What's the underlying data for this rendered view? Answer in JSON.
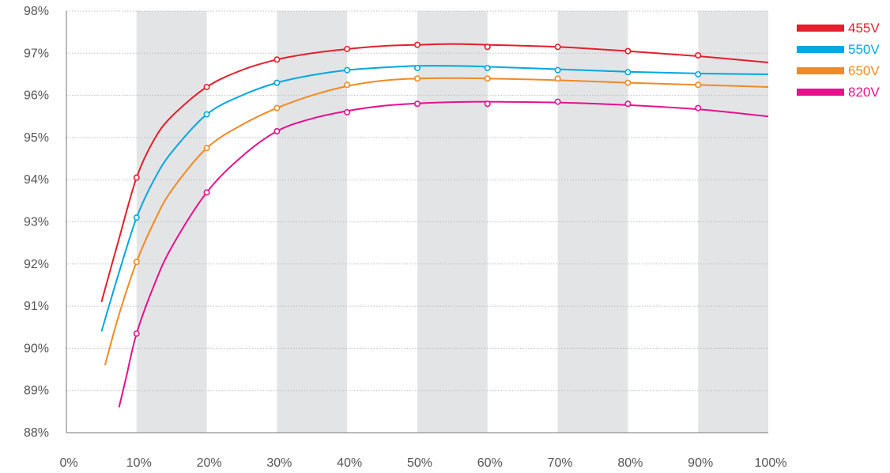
{
  "chart_data": {
    "type": "line",
    "title": "",
    "xlabel": "",
    "ylabel": "",
    "xlim": [
      0,
      100
    ],
    "ylim": [
      88,
      98
    ],
    "x_ticks": [
      0,
      10,
      20,
      30,
      40,
      50,
      60,
      70,
      80,
      90,
      100
    ],
    "x_tick_labels": [
      "0%",
      "10%",
      "20%",
      "30%",
      "40%",
      "50%",
      "60%",
      "70%",
      "80%",
      "90%",
      "100%"
    ],
    "y_ticks": [
      88,
      89,
      90,
      91,
      92,
      93,
      94,
      95,
      96,
      97,
      98
    ],
    "y_tick_labels": [
      "88%",
      "89%",
      "90%",
      "91%",
      "92%",
      "93%",
      "94%",
      "95%",
      "96%",
      "97%",
      "98%"
    ],
    "grid": "horizontal dotted",
    "shaded_bands": [
      [
        10,
        20
      ],
      [
        30,
        40
      ],
      [
        50,
        60
      ],
      [
        70,
        80
      ],
      [
        90,
        100
      ]
    ],
    "legend_position": "top-right",
    "markers_x": [
      10,
      20,
      30,
      40,
      50,
      60,
      70,
      80,
      90
    ],
    "series": [
      {
        "name": "455V",
        "color": "#e41e2b",
        "markers": [
          94.05,
          96.2,
          96.85,
          97.1,
          97.2,
          97.15,
          97.15,
          97.05,
          96.95
        ],
        "curve": [
          [
            5,
            91.1
          ],
          [
            7.5,
            92.6
          ],
          [
            10,
            94.05
          ],
          [
            12.5,
            94.95
          ],
          [
            15,
            95.5
          ],
          [
            20,
            96.2
          ],
          [
            25,
            96.6
          ],
          [
            30,
            96.85
          ],
          [
            35,
            97.0
          ],
          [
            40,
            97.1
          ],
          [
            45,
            97.17
          ],
          [
            50,
            97.2
          ],
          [
            55,
            97.22
          ],
          [
            60,
            97.2
          ],
          [
            70,
            97.15
          ],
          [
            80,
            97.05
          ],
          [
            90,
            96.93
          ],
          [
            100,
            96.78
          ]
        ]
      },
      {
        "name": "550V",
        "color": "#00a7e1",
        "markers": [
          93.1,
          95.55,
          96.3,
          96.6,
          96.65,
          96.65,
          96.6,
          96.55,
          96.5
        ],
        "curve": [
          [
            5,
            90.4
          ],
          [
            7.5,
            91.8
          ],
          [
            10,
            93.1
          ],
          [
            12.5,
            94.0
          ],
          [
            15,
            94.65
          ],
          [
            20,
            95.55
          ],
          [
            25,
            96.0
          ],
          [
            30,
            96.3
          ],
          [
            35,
            96.48
          ],
          [
            40,
            96.6
          ],
          [
            45,
            96.66
          ],
          [
            50,
            96.7
          ],
          [
            55,
            96.7
          ],
          [
            60,
            96.68
          ],
          [
            70,
            96.62
          ],
          [
            80,
            96.56
          ],
          [
            90,
            96.52
          ],
          [
            100,
            96.5
          ]
        ]
      },
      {
        "name": "650V",
        "color": "#f08a24",
        "markers": [
          92.05,
          94.75,
          95.7,
          96.25,
          96.4,
          96.4,
          96.4,
          96.3,
          96.25
        ],
        "curve": [
          [
            5.5,
            89.6
          ],
          [
            7.5,
            90.8
          ],
          [
            10,
            92.05
          ],
          [
            12.5,
            93.0
          ],
          [
            15,
            93.75
          ],
          [
            20,
            94.75
          ],
          [
            25,
            95.3
          ],
          [
            30,
            95.7
          ],
          [
            35,
            96.0
          ],
          [
            40,
            96.22
          ],
          [
            45,
            96.35
          ],
          [
            50,
            96.4
          ],
          [
            55,
            96.41
          ],
          [
            60,
            96.4
          ],
          [
            70,
            96.36
          ],
          [
            80,
            96.3
          ],
          [
            90,
            96.25
          ],
          [
            100,
            96.2
          ]
        ]
      },
      {
        "name": "820V",
        "color": "#e5118d",
        "markers": [
          90.35,
          93.7,
          95.15,
          95.6,
          95.8,
          95.8,
          95.85,
          95.8,
          95.7
        ],
        "curve": [
          [
            7.5,
            88.6
          ],
          [
            8.5,
            89.3
          ],
          [
            10,
            90.35
          ],
          [
            12.5,
            91.5
          ],
          [
            15,
            92.4
          ],
          [
            20,
            93.7
          ],
          [
            25,
            94.55
          ],
          [
            30,
            95.15
          ],
          [
            35,
            95.45
          ],
          [
            40,
            95.63
          ],
          [
            45,
            95.75
          ],
          [
            50,
            95.81
          ],
          [
            55,
            95.84
          ],
          [
            60,
            95.85
          ],
          [
            70,
            95.83
          ],
          [
            80,
            95.77
          ],
          [
            90,
            95.67
          ],
          [
            100,
            95.5
          ]
        ]
      }
    ]
  }
}
